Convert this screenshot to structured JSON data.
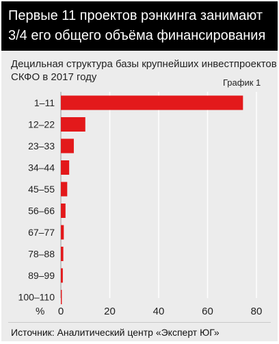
{
  "header": {
    "title_lines": [
      "Первые 11 проектов рэнкинга занимают",
      "3/4 его общего объёма финансирования"
    ]
  },
  "chart_header": {
    "subtitle_lines": [
      "Децильная структура базы крупнейших инвестпроектов",
      "СКФО в 2017 году"
    ],
    "figure_label": "График 1"
  },
  "colors": {
    "bar": "#e3191b",
    "grid": "#ffffff",
    "background": "#ececec"
  },
  "chart_data": {
    "type": "bar",
    "orientation": "horizontal",
    "categories": [
      "1–11",
      "12–22",
      "23–33",
      "34–44",
      "45–55",
      "56–66",
      "67–77",
      "78–88",
      "89–99",
      "100–110"
    ],
    "values": [
      74.5,
      10,
      5.3,
      3.4,
      2.6,
      1.9,
      1.2,
      1.0,
      0.8,
      0.4
    ],
    "xlim": [
      0,
      80
    ],
    "xticks": [
      "0",
      "20",
      "40",
      "60",
      "80"
    ],
    "xunit": "%",
    "grid": true
  },
  "footer": {
    "source": "Источник: Аналитический центр «Эксперт ЮГ»"
  }
}
